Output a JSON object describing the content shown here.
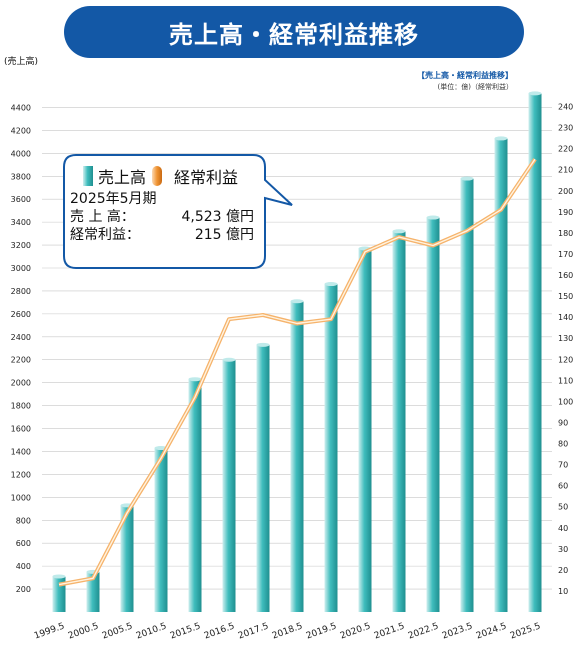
{
  "header": {
    "title": "売上高・経常利益推移"
  },
  "axis_left_unit": "(売上高)",
  "legend_caption": "【売上高・経常利益推移】",
  "legend_unit": "(単位：億)（経常利益）",
  "callout": {
    "legend_bar": "売上高",
    "legend_line": "経常利益",
    "period": "2025年5月期",
    "sales_label": "売 上 高：",
    "sales_value": "4,523 億円",
    "profit_label": "経常利益：",
    "profit_value": "215 億円"
  },
  "colors": {
    "banner": "#1358a6",
    "bar": "#3fbdbd",
    "bar_light": "#cfeeee",
    "bar_dark": "#1f8f90",
    "line": "#f09433",
    "grid": "#c8c8c8"
  },
  "chart_data": {
    "type": "bar",
    "categories": [
      "1999.5",
      "2000.5",
      "2005.5",
      "2010.5",
      "2015.5",
      "2016.5",
      "2017.5",
      "2018.5",
      "2019.5",
      "2020.5",
      "2021.5",
      "2022.5",
      "2023.5",
      "2024.5",
      "2025.5"
    ],
    "series": [
      {
        "name": "売上高",
        "type": "bar",
        "axis": "left",
        "values": [
          310,
          350,
          930,
          1430,
          2030,
          2200,
          2330,
          2710,
          2860,
          3170,
          3320,
          3440,
          3780,
          4130,
          4523
        ]
      },
      {
        "name": "経常利益",
        "type": "line",
        "axis": "right",
        "values": [
          13,
          16,
          47,
          73,
          102,
          139,
          141,
          137,
          139,
          171,
          178,
          174,
          181,
          191,
          215
        ]
      }
    ],
    "ylim_left": [
      0,
      4500
    ],
    "yticks_left": [
      200,
      400,
      600,
      800,
      1000,
      1200,
      1400,
      1600,
      1800,
      2000,
      2200,
      2400,
      2600,
      2800,
      3000,
      3200,
      3400,
      3600,
      3800,
      4000,
      4200,
      4400
    ],
    "ylim_right": [
      0,
      245
    ],
    "yticks_right": [
      10,
      20,
      30,
      40,
      50,
      60,
      70,
      80,
      90,
      100,
      110,
      120,
      130,
      140,
      150,
      160,
      170,
      180,
      190,
      200,
      210,
      220,
      230,
      240
    ],
    "grid": true
  }
}
